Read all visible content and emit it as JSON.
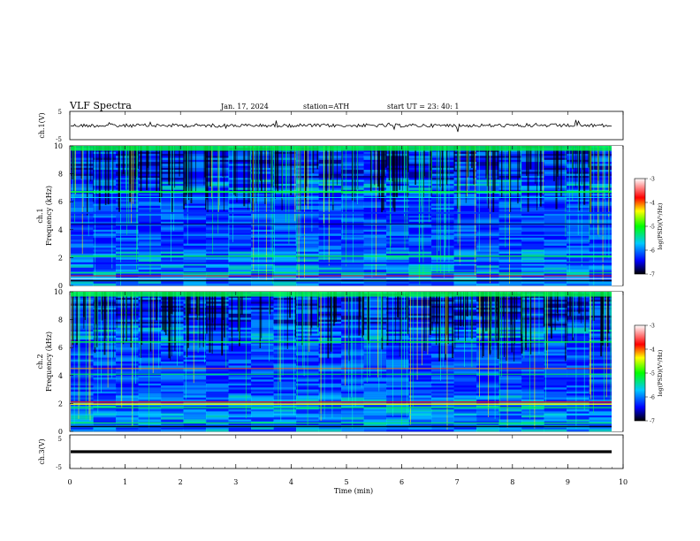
{
  "header": {
    "title": "VLF  Spectra",
    "date": "Jan.  17,  2024",
    "station": "station=ATH",
    "start": "start  UT  =    23:  40:  1"
  },
  "chart_data": [
    {
      "type": "line",
      "panel": "ch1-waveform",
      "ylabel": "ch.1(V)",
      "ylim": [
        -5,
        5
      ],
      "yticks": [
        "5",
        "-5"
      ],
      "xlim": [
        0,
        10
      ],
      "baseline": 0,
      "note_visual": "noisy trace near 0 V with occasional spikes"
    },
    {
      "type": "heatmap",
      "panel": "ch1-spectrogram",
      "channel": "ch.1",
      "ylabel": "Frequency  (kHz)",
      "ylim": [
        0,
        10
      ],
      "yticks": [
        "0",
        "2",
        "4",
        "6",
        "8",
        "10"
      ],
      "xlim": [
        0,
        10
      ],
      "colorbar": {
        "label": "log(PSD)(V²/Hz)",
        "range": [
          -7,
          -3
        ],
        "ticks": [
          "-3",
          "-4",
          "-5",
          "-6",
          "-7"
        ]
      }
    },
    {
      "type": "heatmap",
      "panel": "ch2-spectrogram",
      "channel": "ch.2",
      "ylabel": "Frequency  (kHz)",
      "ylim": [
        0,
        10
      ],
      "yticks": [
        "0",
        "2",
        "4",
        "6",
        "8",
        "10"
      ],
      "xlim": [
        0,
        10
      ],
      "colorbar": {
        "label": "log(PSD)(V²/Hz)",
        "range": [
          -7,
          -3
        ],
        "ticks": [
          "-3",
          "-4",
          "-5",
          "-6",
          "-7"
        ]
      }
    },
    {
      "type": "line",
      "panel": "ch3-waveform",
      "ylabel": "ch.3(V)",
      "ylim": [
        -5,
        5
      ],
      "yticks": [
        "5",
        "-5"
      ],
      "xlim": [
        0,
        10
      ],
      "baseline": 0,
      "note_visual": "flat thick trace near 0 V"
    }
  ],
  "xaxis": {
    "label": "Time  (min)",
    "ticks": [
      "0",
      "1",
      "2",
      "3",
      "4",
      "5",
      "6",
      "7",
      "8",
      "9",
      "10"
    ]
  },
  "colors": {
    "trace": "#000000",
    "colormap": [
      "#000000",
      "#0000ff",
      "#00c8ff",
      "#00ff00",
      "#ffff00",
      "#ff0000",
      "#ffffff"
    ]
  }
}
